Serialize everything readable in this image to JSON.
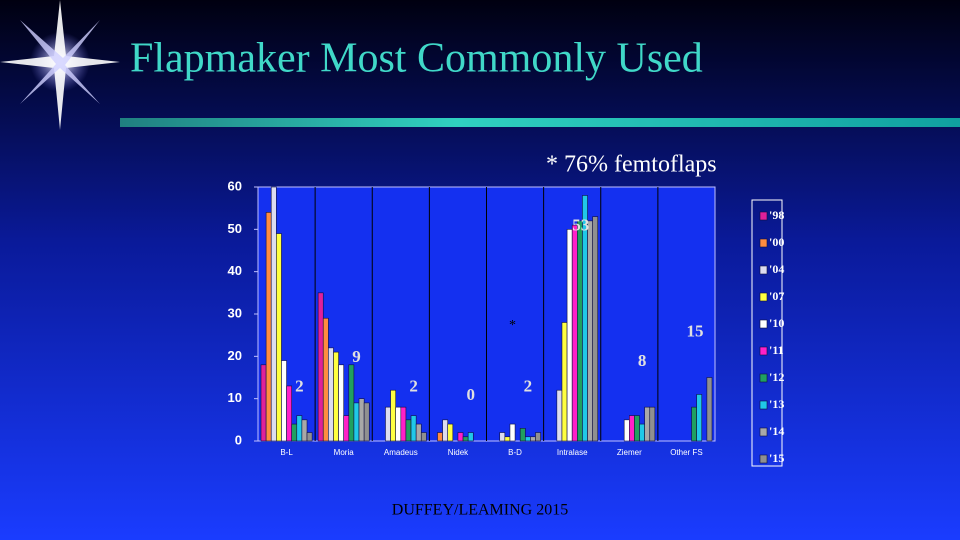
{
  "chart_data": {
    "type": "bar",
    "title": "Flapmaker Most Commonly Used",
    "annotation": "* 76% femtoflaps",
    "plot_note": "*",
    "footer": "DUFFEY/LEAMING 2015",
    "categories": [
      "B-L",
      "Moria",
      "Amadeus",
      "Nidek",
      "B-D",
      "Intralase",
      "Ziemer",
      "Other FS"
    ],
    "series": [
      {
        "name": "'98",
        "color": "#e0209a",
        "values": [
          18,
          35,
          0,
          0,
          0,
          0,
          0,
          0
        ]
      },
      {
        "name": "'00",
        "color": "#ff8c40",
        "values": [
          54,
          29,
          0,
          2,
          0,
          0,
          0,
          0
        ]
      },
      {
        "name": "'04",
        "color": "#dcdcf0",
        "values": [
          60,
          22,
          8,
          5,
          2,
          12,
          0,
          0
        ]
      },
      {
        "name": "'07",
        "color": "#ffff40",
        "values": [
          49,
          21,
          12,
          4,
          1,
          28,
          0,
          0
        ]
      },
      {
        "name": "'10",
        "color": "#ffffff",
        "values": [
          19,
          18,
          8,
          0,
          4,
          50,
          5,
          0
        ]
      },
      {
        "name": "'11",
        "color": "#ff20c8",
        "values": [
          13,
          6,
          8,
          2,
          0,
          51,
          6,
          0
        ]
      },
      {
        "name": "'12",
        "color": "#20a060",
        "values": [
          4,
          18,
          5,
          1,
          3,
          52,
          6,
          8
        ]
      },
      {
        "name": "'13",
        "color": "#20c8e8",
        "values": [
          6,
          9,
          6,
          2,
          1,
          58,
          4,
          11
        ]
      },
      {
        "name": "'14",
        "color": "#a8a8a8",
        "values": [
          5,
          10,
          4,
          0,
          1,
          52,
          8,
          0
        ]
      },
      {
        "name": "'15",
        "color": "#909090",
        "values": [
          2,
          9,
          2,
          0,
          2,
          53,
          8,
          15
        ],
        "data_labels": true
      }
    ],
    "ylim": [
      0,
      60
    ],
    "yticks": [
      0,
      10,
      20,
      30,
      40,
      50,
      60
    ],
    "grid": false
  }
}
